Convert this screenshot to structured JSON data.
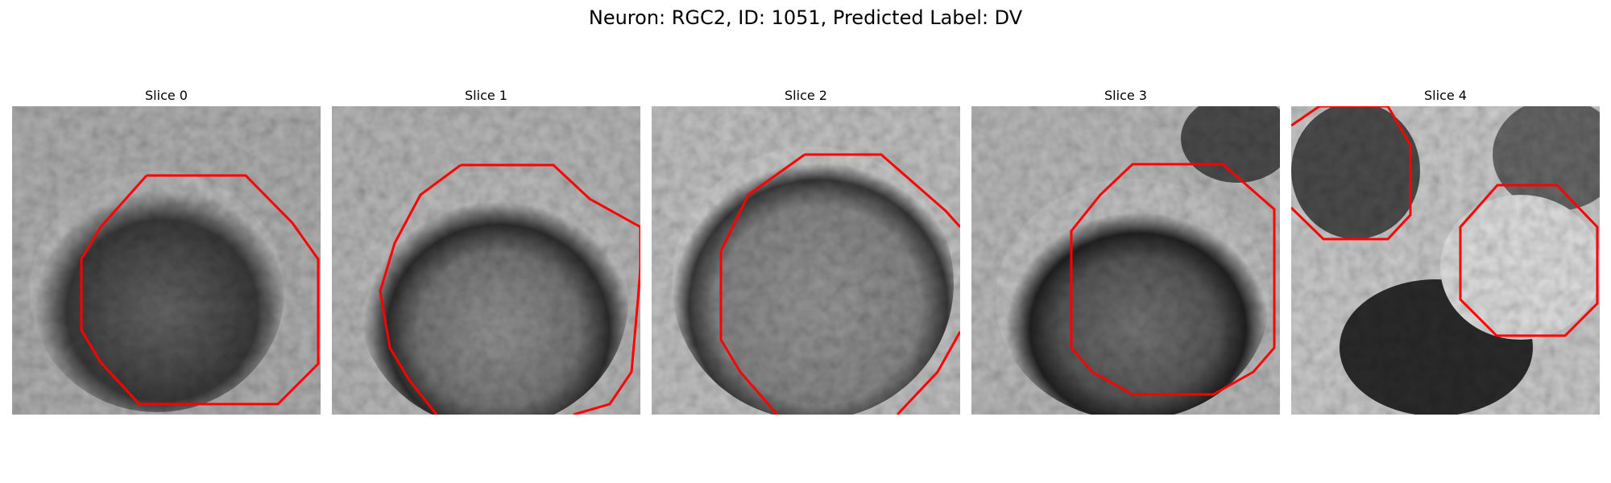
{
  "figure": {
    "title": "Neuron: RGC2, ID: 1051, Predicted Label: DV"
  },
  "panels": [
    {
      "title": "Slice 0"
    },
    {
      "title": "Slice 1"
    },
    {
      "title": "Slice 2"
    },
    {
      "title": "Slice 3"
    },
    {
      "title": "Slice 4"
    }
  ],
  "colors": {
    "contour": "#ff0000",
    "background": "#ffffff"
  }
}
